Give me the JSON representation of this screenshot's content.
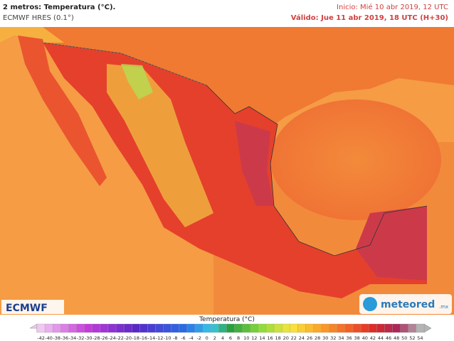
{
  "header": {
    "title": "2 metros: Temperatura (°C).",
    "model": "ECMWF HRES (0.1°)",
    "init": "Inicio: Mié 10 abr 2019, 12 UTC",
    "valid": "Válido: Jue 11 abr 2019, 18 UTC (H+30)"
  },
  "logos": {
    "ecmwf": "ECMWF",
    "meteored": "meteored",
    "suffix": ".mx"
  },
  "legend": {
    "title": "Temperatura (°C)",
    "ticks": [
      -42,
      -40,
      -38,
      -36,
      -34,
      -32,
      -30,
      -28,
      -26,
      -24,
      -22,
      -20,
      -18,
      -16,
      -14,
      -12,
      -10,
      -8,
      -6,
      -4,
      -2,
      0,
      2,
      4,
      6,
      8,
      10,
      12,
      14,
      16,
      18,
      20,
      22,
      24,
      26,
      28,
      30,
      32,
      34,
      36,
      38,
      40,
      42,
      44,
      46,
      48,
      50,
      52,
      54
    ]
  }
}
